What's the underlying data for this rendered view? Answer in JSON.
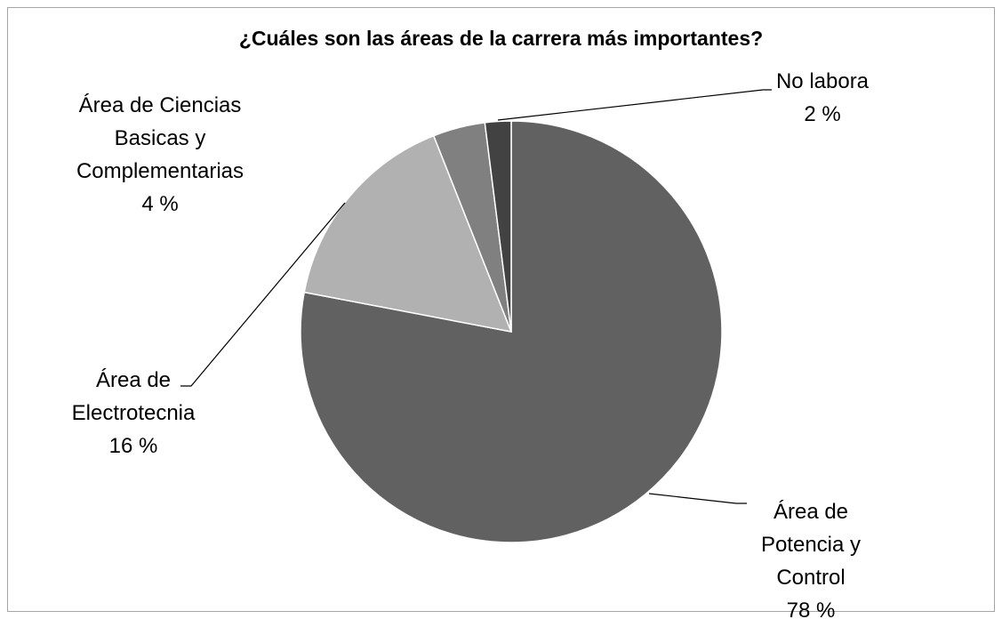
{
  "chart_data": {
    "type": "pie",
    "title": "¿Cuáles son las áreas de la carrera más importantes?",
    "categories": [
      "Área de Potencia y Control",
      "Área de Electrotecnia",
      "Área de Ciencias Basicas y Complementarias",
      "No labora"
    ],
    "values": [
      78,
      16,
      4,
      2
    ],
    "value_labels": [
      "78 %",
      "16 %",
      "4 %",
      "2 %"
    ],
    "colors": [
      "#616161",
      "#b1b1b1",
      "#808080",
      "#424242"
    ]
  }
}
